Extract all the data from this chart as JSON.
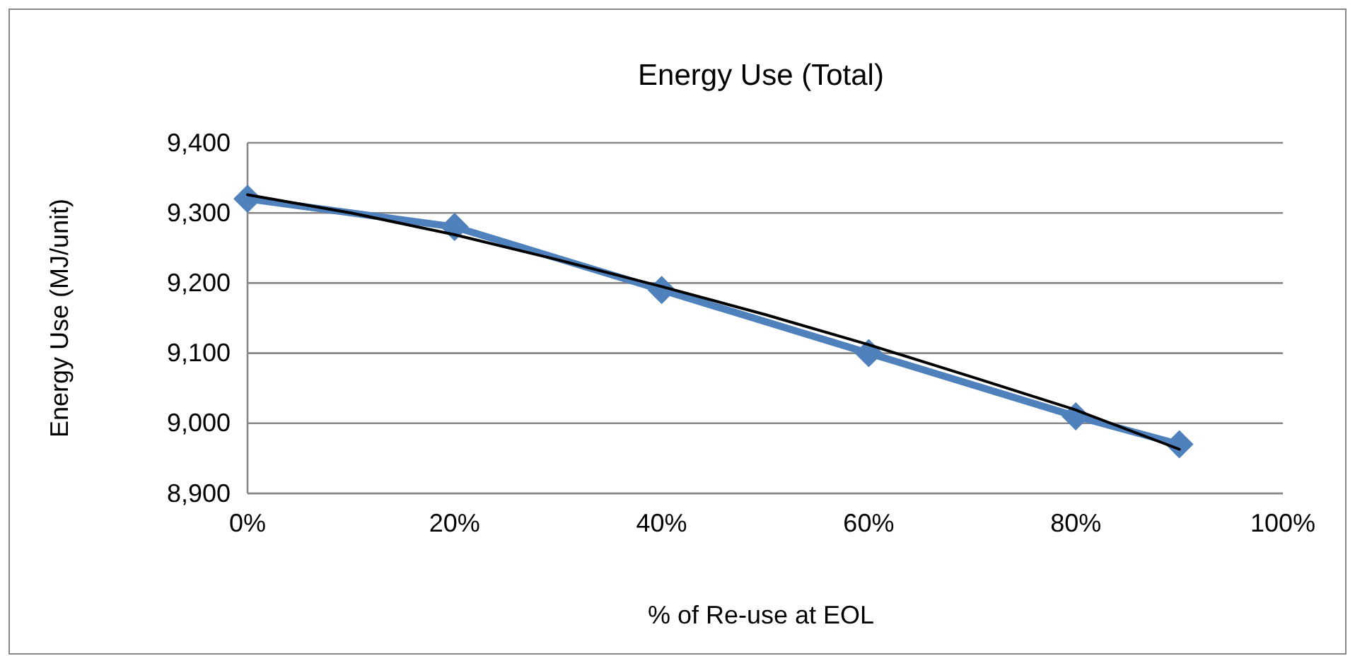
{
  "chart_data": {
    "type": "line",
    "title": "Energy Use (Total)",
    "xlabel": "% of Re-use at EOL",
    "ylabel": "Energy Use (MJ/unit)",
    "x": [
      0,
      20,
      40,
      60,
      80,
      90
    ],
    "series": [
      {
        "color": "#4f81bd",
        "values": [
          9320,
          9280,
          9190,
          9100,
          9010,
          8970
        ],
        "marker": "diamond"
      },
      {
        "type": "line",
        "color": "#000000",
        "x": [
          0,
          10,
          20,
          30,
          40,
          50,
          60,
          70,
          80,
          90
        ],
        "values": [
          9326,
          9300,
          9269,
          9233,
          9195,
          9155,
          9112,
          9066,
          9019,
          8963
        ],
        "marker": "none"
      }
    ],
    "xlim": [
      0,
      100
    ],
    "xticks": [
      {
        "value": 0,
        "label": "0%"
      },
      {
        "value": 20,
        "label": "20%"
      },
      {
        "value": 40,
        "label": "40%"
      },
      {
        "value": 60,
        "label": "60%"
      },
      {
        "value": 80,
        "label": "80%"
      },
      {
        "value": 100,
        "label": "100%"
      }
    ],
    "ylim": [
      8900,
      9400
    ],
    "yticks": [
      {
        "value": 8900,
        "label": "8,900"
      },
      {
        "value": 9000,
        "label": "9,000"
      },
      {
        "value": 9100,
        "label": "9,100"
      },
      {
        "value": 9200,
        "label": "9,200"
      },
      {
        "value": 9300,
        "label": "9,300"
      },
      {
        "value": 9400,
        "label": "9,400"
      }
    ],
    "grid": "y"
  }
}
